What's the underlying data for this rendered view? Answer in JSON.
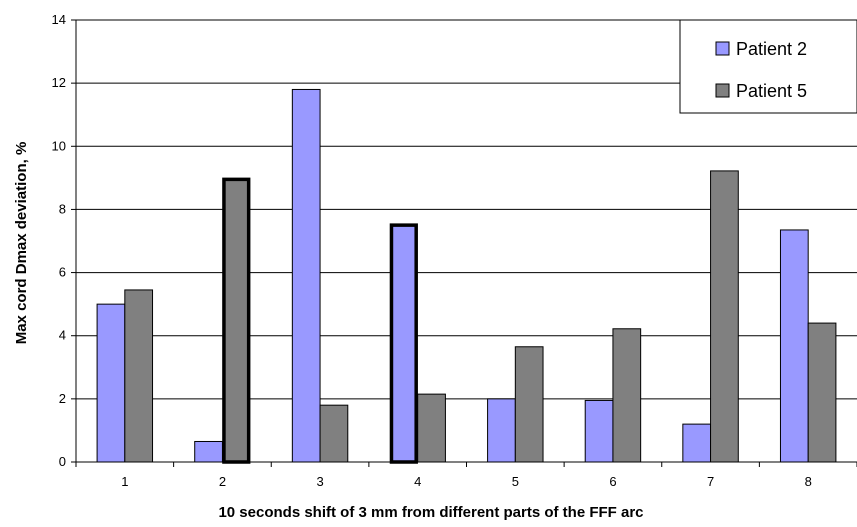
{
  "chart_data": {
    "type": "bar",
    "title": "",
    "xlabel": "10 seconds shift of 3 mm from different parts of the FFF arc",
    "ylabel": "Max cord Dmax deviation, %",
    "categories": [
      "1",
      "2",
      "3",
      "4",
      "5",
      "6",
      "7",
      "8"
    ],
    "ylim": [
      0,
      14
    ],
    "yticks": [
      0,
      2,
      4,
      6,
      8,
      10,
      12,
      14
    ],
    "grid": true,
    "legend_position": "top-right",
    "series": [
      {
        "name": "Patient 2",
        "color": "#9999ff",
        "values": [
          5.0,
          0.65,
          11.8,
          7.55,
          2.0,
          1.95,
          1.2,
          7.35
        ],
        "highlighted": [
          false,
          false,
          false,
          true,
          false,
          false,
          false,
          false
        ]
      },
      {
        "name": "Patient 5",
        "color": "#808080",
        "values": [
          5.45,
          9.0,
          1.8,
          2.15,
          3.65,
          4.22,
          9.22,
          4.4
        ],
        "highlighted": [
          false,
          true,
          false,
          false,
          false,
          false,
          false,
          false
        ]
      }
    ]
  }
}
